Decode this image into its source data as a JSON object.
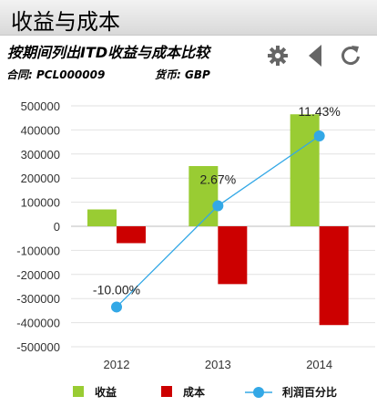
{
  "header": {
    "title": "收益与成本",
    "subtitle": "按期间列出ITD收益与成本比较",
    "contract": "合同: PCL000009",
    "currency": "货币: GBP"
  },
  "toolbar": {
    "icons": [
      "gear-icon",
      "back-triangle-icon",
      "refresh-icon"
    ]
  },
  "colors": {
    "revenue": "#99cc33",
    "cost": "#cc0000",
    "margin": "#33a8e6"
  },
  "chart_data": {
    "type": "bar",
    "title": "",
    "xlabel": "",
    "ylabel": "",
    "categories": [
      "2012",
      "2013",
      "2014"
    ],
    "ylim": [
      -500000,
      500000
    ],
    "yticks": [
      500000,
      400000,
      300000,
      200000,
      100000,
      0,
      -100000,
      -200000,
      -300000,
      -400000,
      -500000
    ],
    "grid": true,
    "legend_position": "bottom",
    "series": [
      {
        "name": "收益",
        "kind": "bar",
        "values": [
          70000,
          250000,
          465000
        ]
      },
      {
        "name": "成本",
        "kind": "bar",
        "values": [
          -70000,
          -240000,
          -410000
        ]
      },
      {
        "name": "利润百分比",
        "kind": "line",
        "values": [
          -10.0,
          2.67,
          11.43
        ],
        "labels": [
          "-10.00%",
          "2.67%",
          "11.43%"
        ],
        "plot_on_left_axis_as": [
          -335000,
          85000,
          375000
        ]
      }
    ]
  }
}
